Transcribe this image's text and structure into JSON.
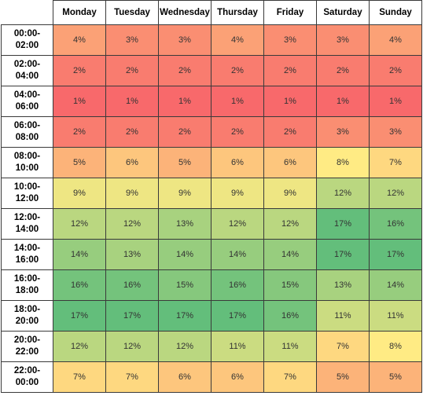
{
  "chart_data": {
    "type": "heatmap",
    "columns": [
      "Monday",
      "Tuesday",
      "Wednesday",
      "Thursday",
      "Friday",
      "Saturday",
      "Sunday"
    ],
    "rows": [
      [
        "00:00-",
        "02:00"
      ],
      [
        "02:00-",
        "04:00"
      ],
      [
        "04:00-",
        "06:00"
      ],
      [
        "06:00-",
        "08:00"
      ],
      [
        "08:00-",
        "10:00"
      ],
      [
        "10:00-",
        "12:00"
      ],
      [
        "12:00-",
        "14:00"
      ],
      [
        "14:00-",
        "16:00"
      ],
      [
        "16:00-",
        "18:00"
      ],
      [
        "18:00-",
        "20:00"
      ],
      [
        "20:00-",
        "22:00"
      ],
      [
        "22:00-",
        "00:00"
      ]
    ],
    "values": [
      [
        4,
        3,
        3,
        4,
        3,
        3,
        4
      ],
      [
        2,
        2,
        2,
        2,
        2,
        2,
        2
      ],
      [
        1,
        1,
        1,
        1,
        1,
        1,
        1
      ],
      [
        2,
        2,
        2,
        2,
        2,
        3,
        3
      ],
      [
        5,
        6,
        5,
        6,
        6,
        8,
        7
      ],
      [
        9,
        9,
        9,
        9,
        9,
        12,
        12
      ],
      [
        12,
        12,
        13,
        12,
        12,
        17,
        16
      ],
      [
        14,
        13,
        14,
        14,
        14,
        17,
        17
      ],
      [
        16,
        16,
        15,
        16,
        15,
        13,
        14
      ],
      [
        17,
        17,
        17,
        17,
        16,
        11,
        11
      ],
      [
        12,
        12,
        12,
        11,
        11,
        7,
        8
      ],
      [
        7,
        7,
        6,
        6,
        7,
        5,
        5
      ]
    ],
    "value_suffix": "%",
    "color_scale": {
      "min_value": 1,
      "mid_value": 8,
      "max_value": 17,
      "min_color": "#f8696b",
      "mid_color": "#ffeb84",
      "max_color": "#63be7b"
    }
  }
}
